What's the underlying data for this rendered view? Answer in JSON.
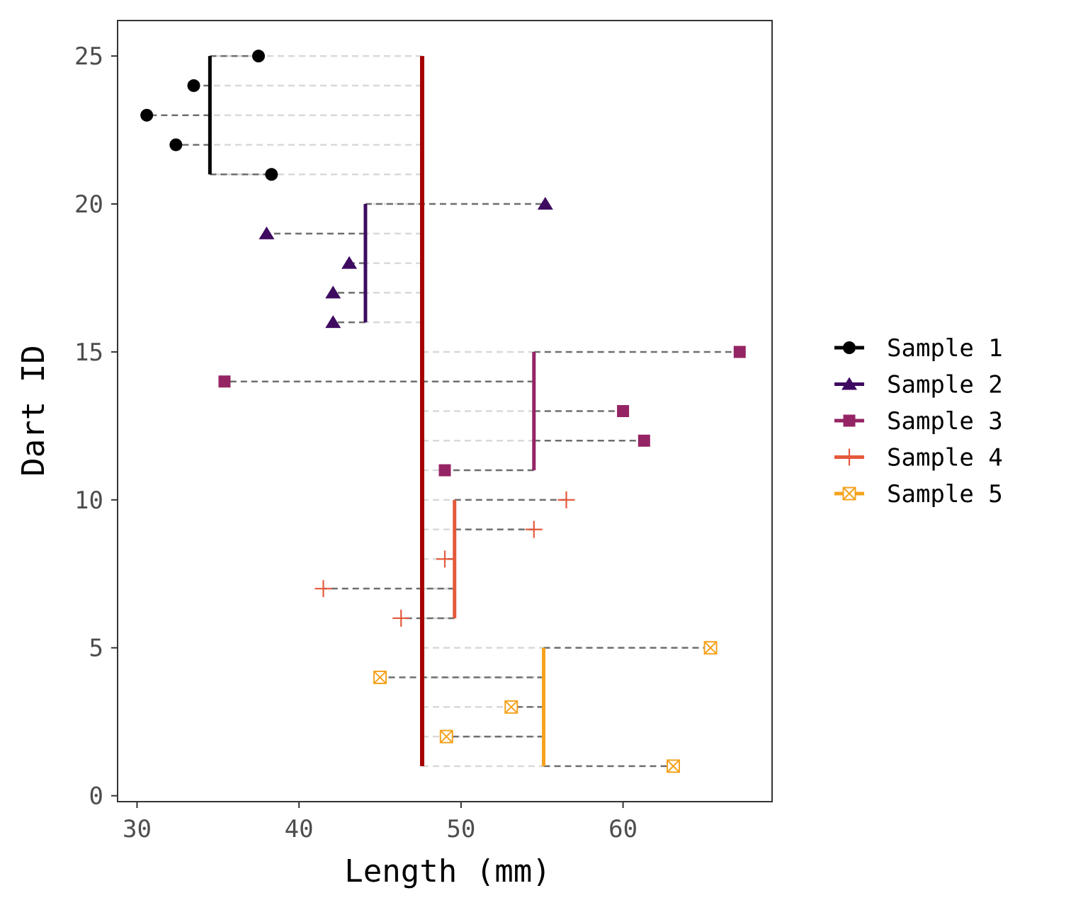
{
  "chart_data": {
    "type": "scatter",
    "xlabel": "Length (mm)",
    "ylabel": "Dart ID",
    "xlim": [
      28.8,
      69.2
    ],
    "ylim": [
      -0.2,
      26.2
    ],
    "x_ticks": [
      30,
      40,
      50,
      60
    ],
    "y_ticks": [
      0,
      5,
      10,
      15,
      20,
      25
    ],
    "grand_mean": 47.6,
    "grand_mean_color": "#a50000",
    "legend_position": "right",
    "grid": false,
    "series": [
      {
        "name": "Sample 1",
        "marker": "circle",
        "color": "#000000",
        "mean": 34.5,
        "points": [
          {
            "id": 21,
            "x": 38.3
          },
          {
            "id": 22,
            "x": 32.4
          },
          {
            "id": 23,
            "x": 30.6
          },
          {
            "id": 24,
            "x": 33.5
          },
          {
            "id": 25,
            "x": 37.5
          }
        ]
      },
      {
        "name": "Sample 2",
        "marker": "triangle",
        "color": "#3e0b61",
        "mean": 44.1,
        "points": [
          {
            "id": 16,
            "x": 42.1
          },
          {
            "id": 17,
            "x": 42.1
          },
          {
            "id": 18,
            "x": 43.1
          },
          {
            "id": 19,
            "x": 38.0
          },
          {
            "id": 20,
            "x": 55.2
          }
        ]
      },
      {
        "name": "Sample 3",
        "marker": "square",
        "color": "#952464",
        "mean": 54.5,
        "points": [
          {
            "id": 11,
            "x": 49.0
          },
          {
            "id": 12,
            "x": 61.3
          },
          {
            "id": 13,
            "x": 60.0
          },
          {
            "id": 14,
            "x": 35.4
          },
          {
            "id": 15,
            "x": 67.2
          }
        ]
      },
      {
        "name": "Sample 4",
        "marker": "plus",
        "color": "#e45a3c",
        "mean": 49.6,
        "points": [
          {
            "id": 6,
            "x": 46.3
          },
          {
            "id": 7,
            "x": 41.5
          },
          {
            "id": 8,
            "x": 49.0
          },
          {
            "id": 9,
            "x": 54.5
          },
          {
            "id": 10,
            "x": 56.5
          }
        ]
      },
      {
        "name": "Sample 5",
        "marker": "boxed-x",
        "color": "#f5a21d",
        "mean": 55.1,
        "points": [
          {
            "id": 1,
            "x": 63.1
          },
          {
            "id": 2,
            "x": 49.1
          },
          {
            "id": 3,
            "x": 53.1
          },
          {
            "id": 4,
            "x": 45.0
          },
          {
            "id": 5,
            "x": 65.4
          }
        ]
      }
    ]
  }
}
